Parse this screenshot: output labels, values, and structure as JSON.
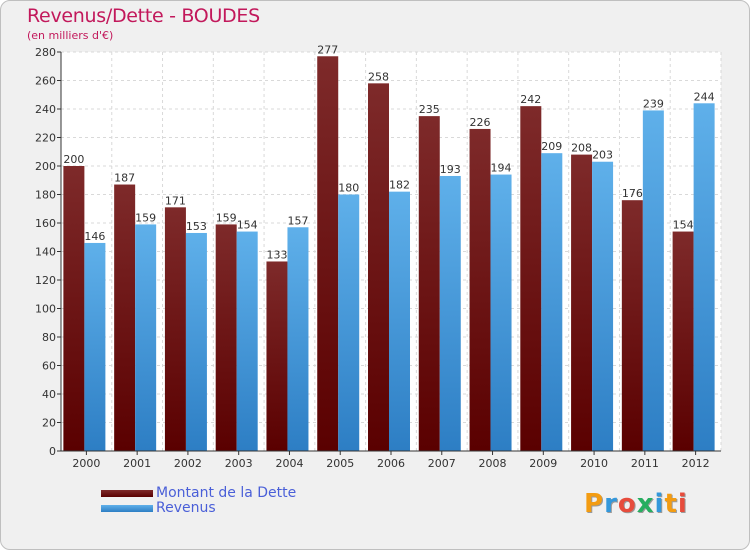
{
  "chart_data": {
    "type": "bar",
    "title": "Revenus/Dette - BOUDES",
    "subtitle": "(en milliers d'€)",
    "categories": [
      "2000",
      "2001",
      "2002",
      "2003",
      "2004",
      "2005",
      "2006",
      "2007",
      "2008",
      "2009",
      "2010",
      "2011",
      "2012"
    ],
    "series": [
      {
        "name": "Montant de la Dette",
        "color": "#8b1a1a",
        "values": [
          200,
          187,
          171,
          159,
          133,
          277,
          258,
          235,
          226,
          242,
          208,
          176,
          154
        ]
      },
      {
        "name": "Revenus",
        "color": "#4aa3e6",
        "values": [
          146,
          159,
          153,
          154,
          157,
          180,
          182,
          193,
          194,
          209,
          203,
          239,
          244
        ]
      }
    ],
    "ylim": [
      0,
      280
    ],
    "yticks": [
      0,
      20,
      40,
      60,
      80,
      100,
      120,
      140,
      160,
      180,
      200,
      220,
      240,
      260,
      280
    ],
    "grid": true,
    "legend_position": "bottom-left"
  },
  "logo": {
    "letters": [
      "P",
      "r",
      "o",
      "x",
      "i",
      "t",
      "i"
    ],
    "colors": [
      "#f39c12",
      "#3498db",
      "#e74c3c",
      "#27ae60",
      "#3498db",
      "#f39c12",
      "#e74c3c"
    ]
  }
}
